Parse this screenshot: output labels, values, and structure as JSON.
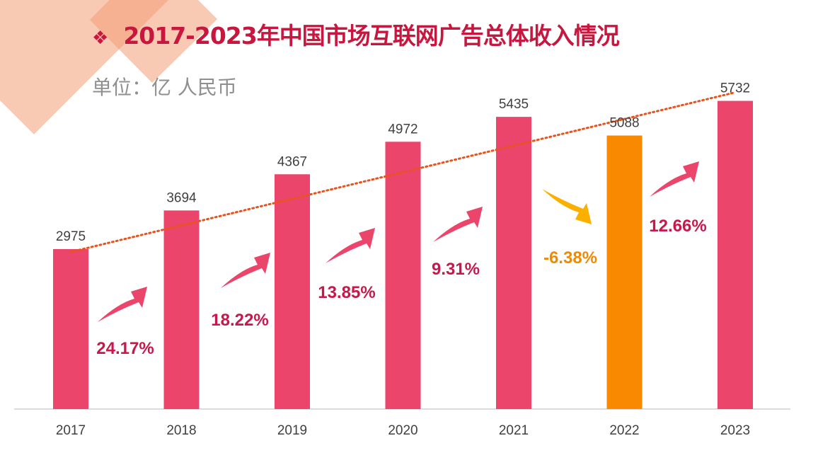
{
  "title": "2017-2023年中国市场互联网广告总体收入情况",
  "title_bullet": "❖",
  "unit_label": "单位：亿 人民币",
  "colors": {
    "bar": "#ec456b",
    "highlight_bar": "#f98a00",
    "trend": "#e8531c",
    "up_arrow": "#ec456b",
    "down_arrow": "#fbb000",
    "up_text": "#c8174a",
    "down_text": "#f08a00",
    "title": "#c8173f"
  },
  "chart_data": {
    "type": "bar",
    "categories": [
      "2017",
      "2018",
      "2019",
      "2020",
      "2021",
      "2022",
      "2023"
    ],
    "values": [
      2975,
      3694,
      4367,
      4972,
      5435,
      5088,
      5732
    ],
    "highlight_index": 5,
    "ylim": [
      0,
      6000
    ],
    "grid": false,
    "trendline": "linear dotted",
    "growth_rates": [
      {
        "label": "24.17%",
        "direction": "up"
      },
      {
        "label": "18.22%",
        "direction": "up"
      },
      {
        "label": "13.85%",
        "direction": "up"
      },
      {
        "label": "9.31%",
        "direction": "up"
      },
      {
        "label": "-6.38%",
        "direction": "down"
      },
      {
        "label": "12.66%",
        "direction": "up"
      }
    ]
  }
}
